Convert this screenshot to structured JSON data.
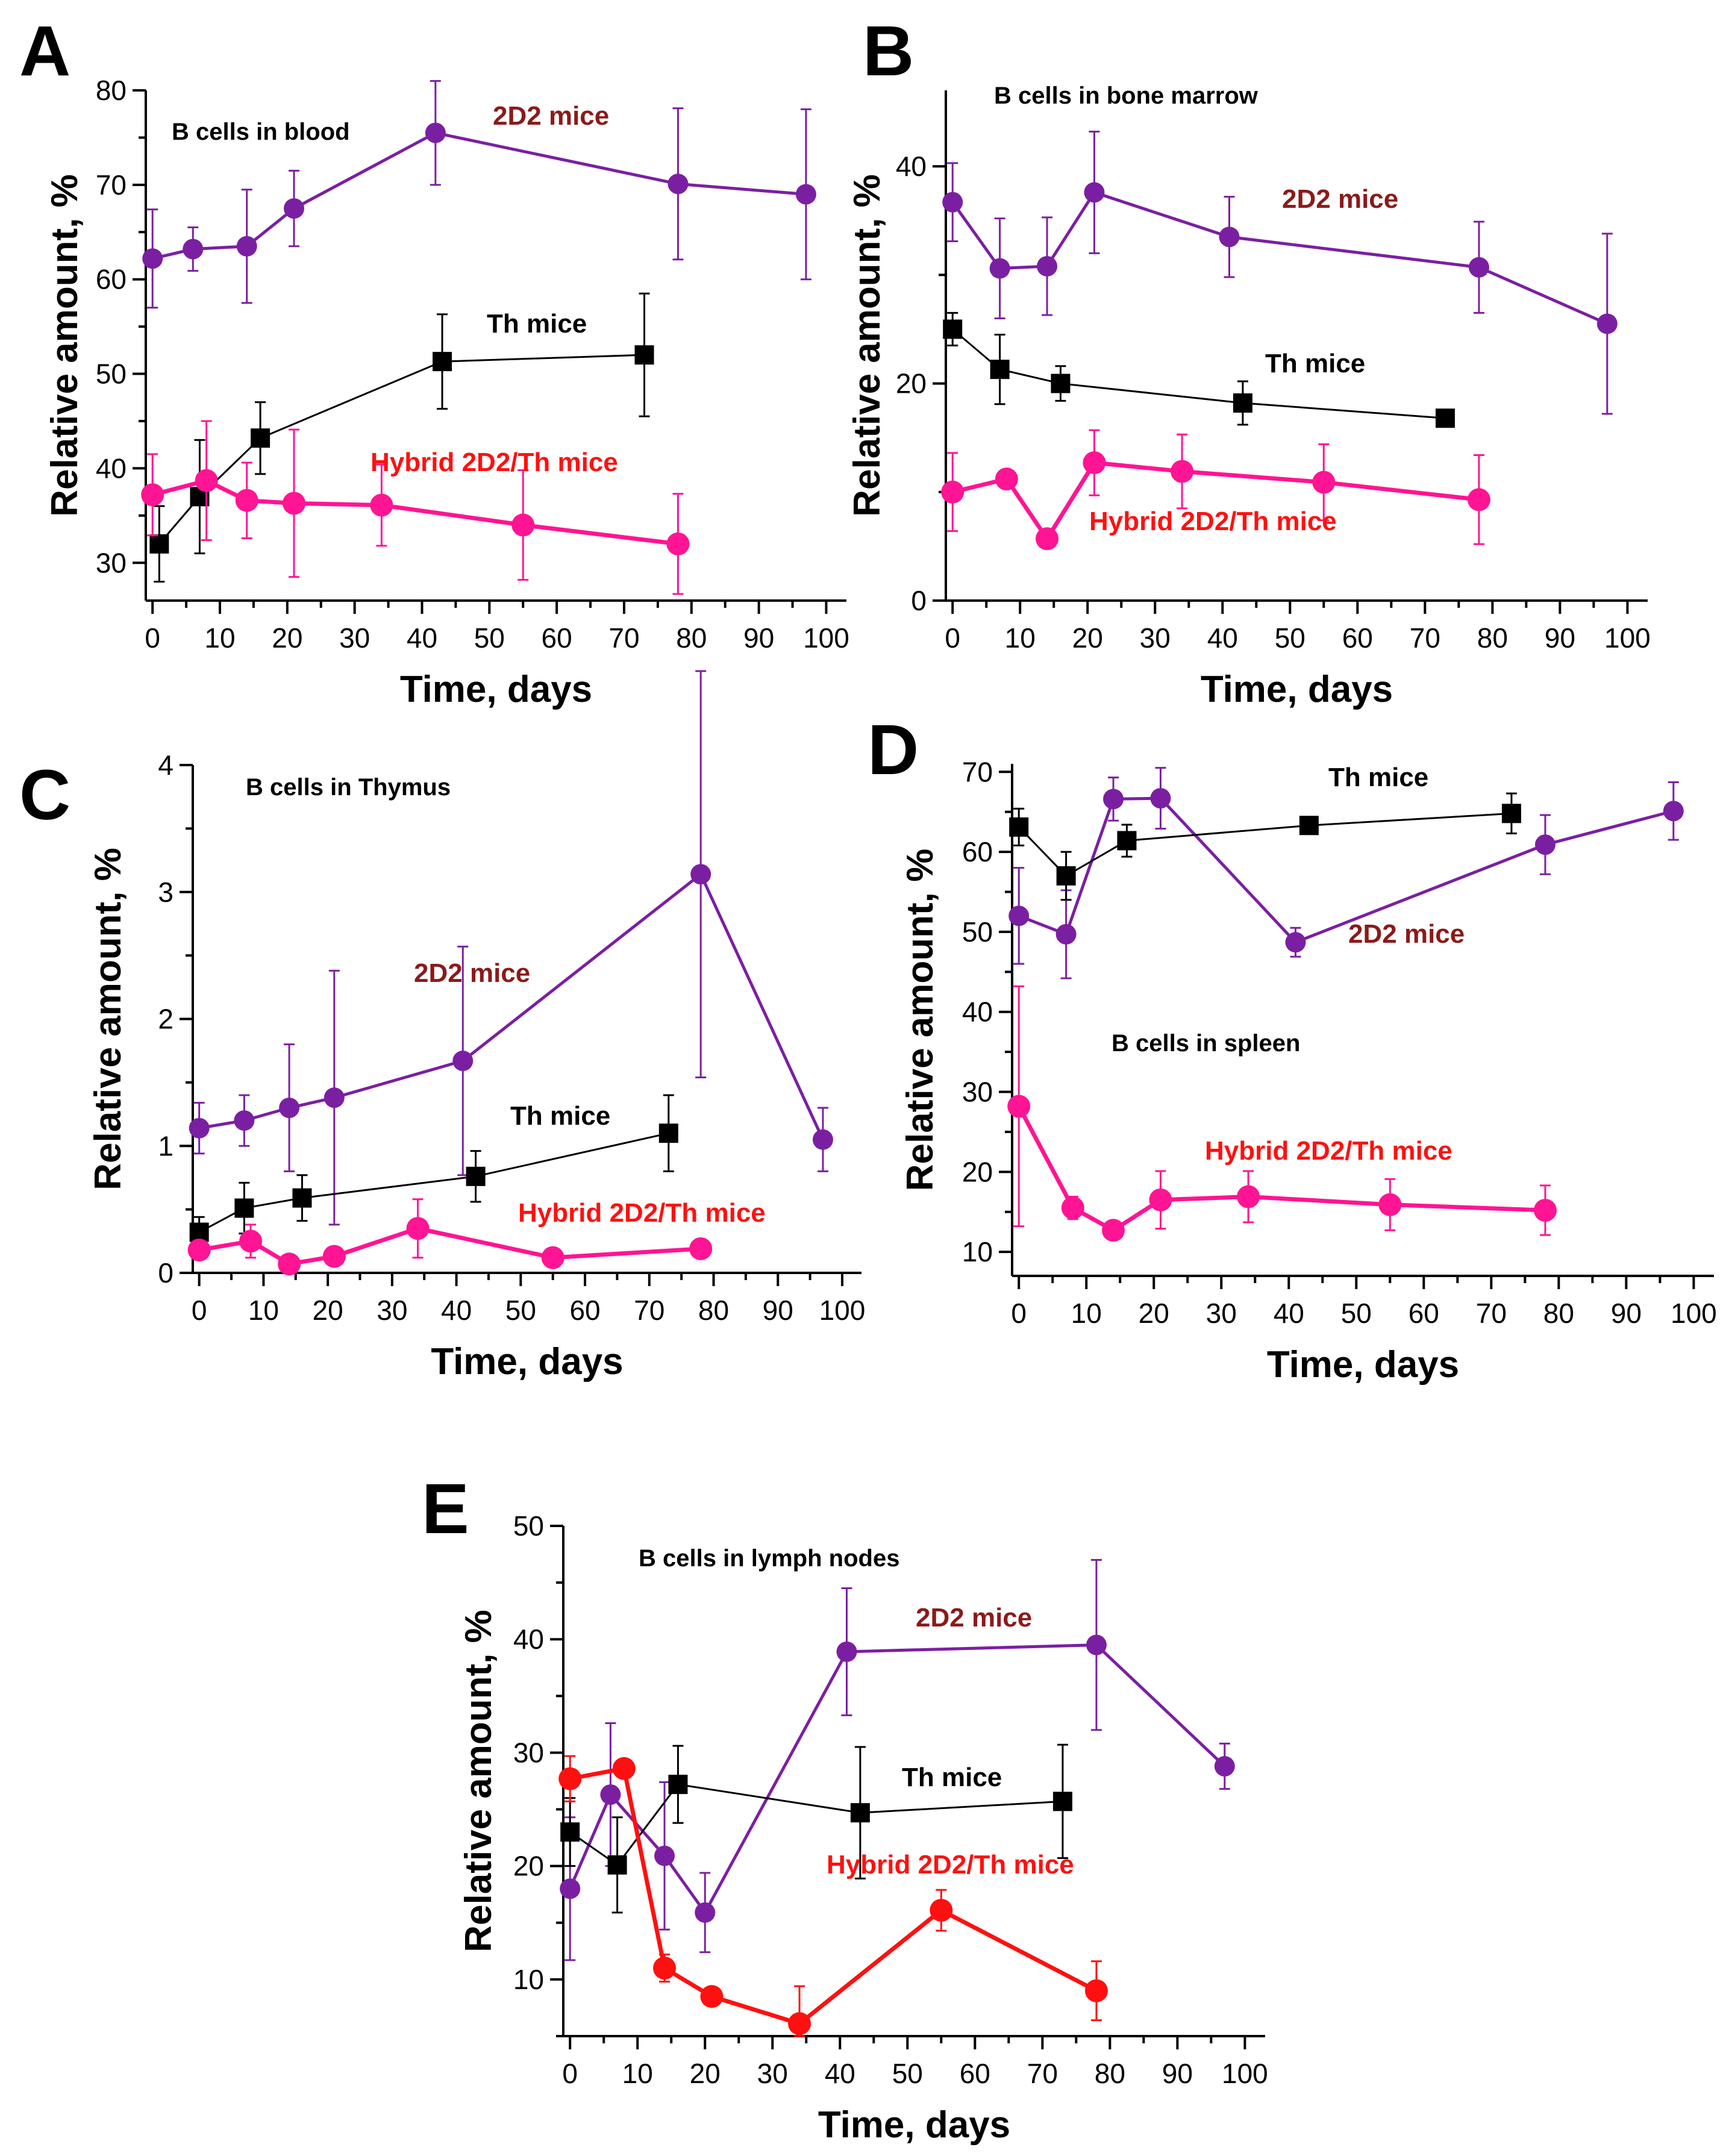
{
  "figure": {
    "x_label": "Time, days",
    "y_label": "Relative amount, %",
    "colors": {
      "mice_2d2_series": "#7B1FA2",
      "th_series": "#000000",
      "hybrid_series": "#FF1493",
      "hybrid_series_e": "#FF1010",
      "label_2d2": "#8B1A1A",
      "label_hybrid": "#FF1010",
      "axis": "#000000"
    }
  },
  "chart_data": [
    {
      "panel": "A",
      "type": "line",
      "title": "B cells in blood",
      "xlabel": "Time, days",
      "ylabel": "Relative amount, %",
      "xlim": [
        -1,
        103
      ],
      "ylim": [
        26,
        80
      ],
      "xticks": [
        0,
        10,
        20,
        30,
        40,
        50,
        60,
        70,
        80,
        90,
        100
      ],
      "yticks": [
        30,
        40,
        50,
        60,
        70,
        80
      ],
      "series": [
        {
          "name": "2D2 mice",
          "label": "2D2 mice",
          "marker": "circle",
          "color": "#7B1FA2",
          "x": [
            0,
            6,
            14,
            21,
            42,
            78,
            97
          ],
          "y": [
            62.2,
            63.2,
            63.5,
            67.5,
            75.5,
            70.1,
            69
          ],
          "err": [
            5.2,
            2.3,
            6,
            4,
            5.5,
            8,
            9
          ]
        },
        {
          "name": "Th mice",
          "label": "Th mice",
          "marker": "square",
          "color": "#000000",
          "x": [
            1,
            7,
            16,
            43,
            73
          ],
          "y": [
            32,
            37,
            43.2,
            51.3,
            52
          ],
          "err": [
            4,
            6,
            3.8,
            5,
            6.5
          ]
        },
        {
          "name": "Hybrid 2D2/Th mice",
          "label": "Hybrid 2D2/Th mice",
          "marker": "circle",
          "color": "#FF1493",
          "x": [
            0,
            8,
            14,
            21,
            34,
            55,
            78
          ],
          "y": [
            37.2,
            38.7,
            36.6,
            36.3,
            36.1,
            34,
            32
          ],
          "err": [
            4.3,
            6.3,
            4,
            7.8,
            4.3,
            5.8,
            5.3
          ]
        }
      ]
    },
    {
      "panel": "B",
      "type": "line",
      "title": "B cells in bone marrow",
      "xlabel": "Time, days",
      "ylabel": "Relative amount, %",
      "xlim": [
        -1,
        103
      ],
      "ylim": [
        0,
        47
      ],
      "xticks": [
        0,
        10,
        20,
        30,
        40,
        50,
        60,
        70,
        80,
        90,
        100
      ],
      "yticks": [
        0,
        20,
        40
      ],
      "series": [
        {
          "name": "2D2 mice",
          "label": "2D2 mice",
          "marker": "circle",
          "color": "#7B1FA2",
          "x": [
            0,
            7,
            14,
            21,
            41,
            78,
            97
          ],
          "y": [
            36.7,
            30.6,
            30.8,
            37.6,
            33.5,
            30.7,
            25.5
          ],
          "err": [
            3.6,
            4.6,
            4.5,
            5.6,
            3.7,
            4.2,
            8.3
          ]
        },
        {
          "name": "Th mice",
          "label": "Th mice",
          "marker": "square",
          "color": "#000000",
          "x": [
            0,
            7,
            16,
            43,
            73
          ],
          "y": [
            25,
            21.3,
            20,
            18.2,
            16.8
          ],
          "err": [
            1.5,
            3.2,
            1.6,
            2,
            0
          ]
        },
        {
          "name": "Hybrid 2D2/Th mice",
          "label": "Hybrid 2D2/Th mice",
          "marker": "circle",
          "color": "#FF1493",
          "x": [
            0,
            8,
            14,
            21,
            34,
            55,
            78
          ],
          "y": [
            10,
            11.2,
            5.7,
            12.7,
            11.9,
            10.9,
            9.3
          ],
          "err": [
            3.6,
            0,
            0,
            3,
            3.4,
            3.5,
            4.1
          ]
        }
      ]
    },
    {
      "panel": "C",
      "type": "line",
      "title": "B cells in Thymus",
      "xlabel": "Time, days",
      "ylabel": "Relative amount, %",
      "xlim": [
        -1,
        103
      ],
      "ylim": [
        0,
        4
      ],
      "xticks": [
        0,
        10,
        20,
        30,
        40,
        50,
        60,
        70,
        80,
        90,
        100
      ],
      "yticks": [
        0,
        1,
        2,
        3,
        4
      ],
      "series": [
        {
          "name": "2D2 mice",
          "label": "2D2 mice",
          "marker": "circle",
          "color": "#7B1FA2",
          "x": [
            0,
            7,
            14,
            21,
            41,
            78,
            97
          ],
          "y": [
            1.14,
            1.2,
            1.3,
            1.38,
            1.67,
            3.14,
            1.05
          ],
          "err": [
            0.2,
            0.2,
            0.5,
            1,
            0.9,
            1.6,
            0.25
          ]
        },
        {
          "name": "Th mice",
          "label": "Th mice",
          "marker": "square",
          "color": "#000000",
          "x": [
            0,
            7,
            16,
            43,
            73
          ],
          "y": [
            0.32,
            0.51,
            0.59,
            0.76,
            1.1
          ],
          "err": [
            0.12,
            0.2,
            0.18,
            0.2,
            0.3
          ]
        },
        {
          "name": "Hybrid 2D2/Th mice",
          "label": "Hybrid 2D2/Th mice",
          "marker": "circle",
          "color": "#FF1493",
          "x": [
            0,
            8,
            14,
            21,
            34,
            55,
            78
          ],
          "y": [
            0.18,
            0.25,
            0.07,
            0.13,
            0.35,
            0.12,
            0.19
          ],
          "err": [
            0.05,
            0.13,
            0,
            0,
            0.23,
            0,
            0
          ]
        }
      ]
    },
    {
      "panel": "D",
      "type": "line",
      "title": "B cells in spleen",
      "xlabel": "Time, days",
      "ylabel": "Relative amount, %",
      "xlim": [
        -1,
        103
      ],
      "ylim": [
        7,
        71
      ],
      "xticks": [
        0,
        10,
        20,
        30,
        40,
        50,
        60,
        70,
        80,
        90,
        100
      ],
      "yticks": [
        10,
        20,
        30,
        40,
        50,
        60,
        70
      ],
      "series": [
        {
          "name": "2D2 mice",
          "label": "2D2 mice",
          "marker": "circle",
          "color": "#7B1FA2",
          "x": [
            0,
            7,
            14,
            21,
            41,
            78,
            97
          ],
          "y": [
            52,
            49.7,
            66.6,
            66.7,
            48.7,
            60.9,
            65.1
          ],
          "err": [
            6,
            5.5,
            2.7,
            3.8,
            1.8,
            3.7,
            3.6
          ]
        },
        {
          "name": "Th mice",
          "label": "Th mice",
          "marker": "square",
          "color": "#000000",
          "x": [
            0,
            7,
            16,
            43,
            73
          ],
          "y": [
            63.1,
            57,
            61.4,
            63.3,
            64.8
          ],
          "err": [
            2.3,
            3,
            2,
            0,
            2.5
          ]
        },
        {
          "name": "Hybrid 2D2/Th mice",
          "label": "Hybrid 2D2/Th mice",
          "marker": "circle",
          "color": "#FF1493",
          "x": [
            0,
            8,
            14,
            21,
            34,
            55,
            78
          ],
          "y": [
            28.2,
            15.5,
            12.7,
            16.5,
            16.9,
            15.9,
            15.2
          ],
          "err": [
            15,
            1.4,
            0,
            3.6,
            3.2,
            3.2,
            3.1
          ]
        }
      ]
    },
    {
      "panel": "E",
      "type": "line",
      "title": "B cells in lymph nodes",
      "xlabel": "Time, days",
      "ylabel": "Relative amount, %",
      "xlim": [
        -1,
        103
      ],
      "ylim": [
        5,
        50
      ],
      "xticks": [
        0,
        10,
        20,
        30,
        40,
        50,
        60,
        70,
        80,
        90,
        100
      ],
      "yticks": [
        10,
        20,
        30,
        40,
        50
      ],
      "series": [
        {
          "name": "2D2 mice",
          "label": "2D2 mice",
          "marker": "circle",
          "color": "#7B1FA2",
          "x": [
            0,
            6,
            14,
            20,
            41,
            78,
            97
          ],
          "y": [
            18,
            26.3,
            20.9,
            15.9,
            38.9,
            39.5,
            28.8
          ],
          "err": [
            6.3,
            6.3,
            6.5,
            3.5,
            5.6,
            7.5,
            2
          ]
        },
        {
          "name": "Th mice",
          "label": "Th mice",
          "marker": "square",
          "color": "#000000",
          "x": [
            0,
            7,
            16,
            43,
            73
          ],
          "y": [
            23,
            20.1,
            27.2,
            24.7,
            25.7
          ],
          "err": [
            3,
            4.2,
            3.4,
            5.8,
            5
          ]
        },
        {
          "name": "Hybrid 2D2/Th mice",
          "label": "Hybrid 2D2/Th mice",
          "marker": "circle",
          "color": "#FF1010",
          "x": [
            0,
            8,
            14,
            21,
            34,
            55,
            78
          ],
          "y": [
            27.7,
            28.6,
            11,
            8.5,
            6.1,
            16.1,
            9
          ],
          "err": [
            2,
            0.5,
            1.2,
            0,
            3.3,
            1.8,
            2.6
          ]
        }
      ]
    }
  ]
}
